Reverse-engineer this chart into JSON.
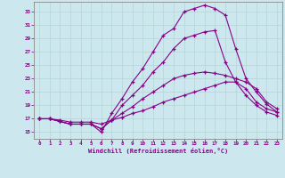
{
  "xlabel": "Windchill (Refroidissement éolien,°C)",
  "bg_color": "#cce8ee",
  "line_color": "#880088",
  "grid_color": "#b8d8d8",
  "axis_color": "#888888",
  "xlim": [
    -0.5,
    23.5
  ],
  "ylim": [
    14.0,
    34.5
  ],
  "xticks": [
    0,
    1,
    2,
    3,
    4,
    5,
    6,
    7,
    8,
    9,
    10,
    11,
    12,
    13,
    14,
    15,
    16,
    17,
    18,
    19,
    20,
    21,
    22,
    23
  ],
  "yticks": [
    15,
    17,
    19,
    21,
    23,
    25,
    27,
    29,
    31,
    33
  ],
  "line_high": {
    "x": [
      0,
      1,
      2,
      3,
      4,
      5,
      6,
      7,
      8,
      9,
      10,
      11,
      12,
      13,
      14,
      15,
      16,
      17,
      18,
      19,
      20,
      21,
      22,
      23
    ],
    "y": [
      17.0,
      17.0,
      16.6,
      16.2,
      16.2,
      16.2,
      15.0,
      17.8,
      20.0,
      22.5,
      24.5,
      27.0,
      29.5,
      30.5,
      33.0,
      33.5,
      34.0,
      33.5,
      32.5,
      27.5,
      23.0,
      21.0,
      19.2,
      18.0
    ]
  },
  "line_mid_high": {
    "x": [
      0,
      1,
      2,
      3,
      4,
      5,
      6,
      7,
      8,
      9,
      10,
      11,
      12,
      13,
      14,
      15,
      16,
      17,
      18,
      19,
      20,
      21,
      22,
      23
    ],
    "y": [
      17.0,
      17.0,
      16.6,
      16.2,
      16.2,
      16.2,
      15.5,
      16.8,
      19.0,
      20.5,
      22.0,
      24.0,
      25.5,
      27.5,
      29.0,
      29.5,
      30.0,
      30.2,
      25.5,
      22.5,
      20.5,
      19.0,
      18.0,
      17.5
    ]
  },
  "line_mid_low": {
    "x": [
      0,
      1,
      2,
      3,
      4,
      5,
      6,
      7,
      8,
      9,
      10,
      11,
      12,
      13,
      14,
      15,
      16,
      17,
      18,
      19,
      20,
      21,
      22,
      23
    ],
    "y": [
      17.0,
      17.0,
      16.6,
      16.2,
      16.2,
      16.2,
      15.5,
      16.8,
      17.8,
      18.8,
      20.0,
      21.0,
      22.0,
      23.0,
      23.5,
      23.8,
      24.0,
      23.8,
      23.5,
      23.0,
      22.5,
      21.5,
      19.5,
      18.5
    ]
  },
  "line_low": {
    "x": [
      0,
      1,
      2,
      3,
      4,
      5,
      6,
      7,
      8,
      9,
      10,
      11,
      12,
      13,
      14,
      15,
      16,
      17,
      18,
      19,
      20,
      21,
      22,
      23
    ],
    "y": [
      17.0,
      17.0,
      16.8,
      16.5,
      16.5,
      16.5,
      16.2,
      16.8,
      17.2,
      17.8,
      18.2,
      18.8,
      19.5,
      20.0,
      20.5,
      21.0,
      21.5,
      22.0,
      22.5,
      22.5,
      21.5,
      19.5,
      18.5,
      18.0
    ]
  }
}
